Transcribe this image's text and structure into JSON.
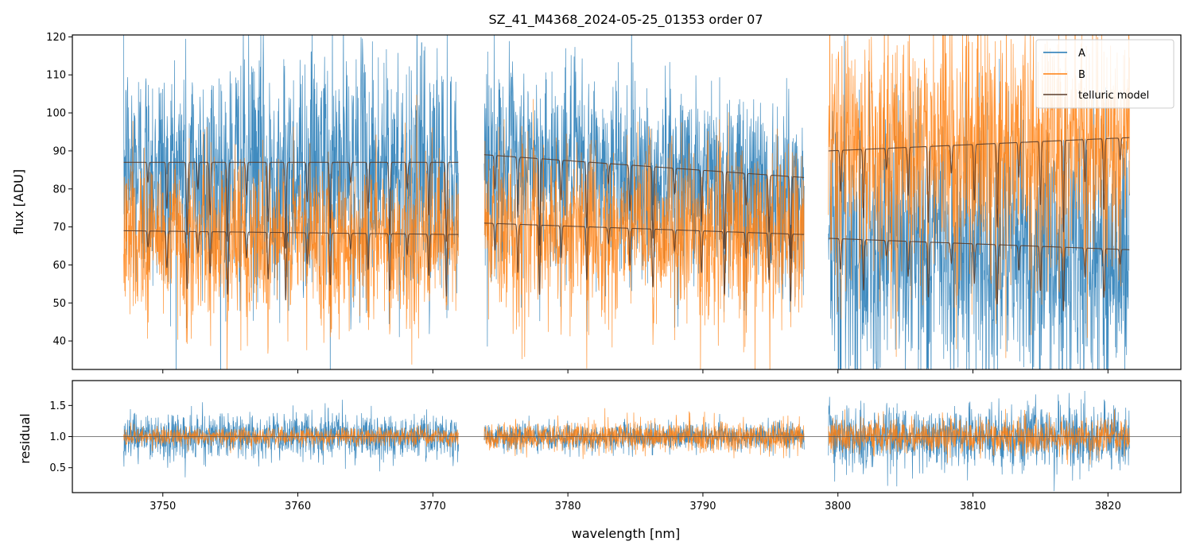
{
  "chart_data": [
    {
      "type": "line",
      "panel": "top",
      "title": "SZ_41_M4368_2024-05-25_01353  order 07",
      "xlabel": "",
      "ylabel": "flux [ADU]",
      "xlim": [
        3743.3,
        3825.4
      ],
      "ylim": [
        32.5,
        120.5
      ],
      "yticks": [
        40,
        50,
        60,
        70,
        80,
        90,
        100,
        110,
        120
      ],
      "xticks": [
        3750,
        3760,
        3770,
        3780,
        3790,
        3800,
        3810,
        3820
      ],
      "segments": [
        [
          3747.1,
          3771.9
        ],
        [
          3773.8,
          3797.5
        ],
        [
          3799.3,
          3821.6
        ]
      ],
      "legend": {
        "location": "top-right",
        "entries": [
          "A",
          "B",
          "telluric model"
        ]
      },
      "series": [
        {
          "name": "A",
          "color": "#1f77b4",
          "kind": "noisy-spectrum",
          "segment_levels": [
            {
              "range": [
                3747.1,
                3771.9
              ],
              "mean_start": 85,
              "mean_end": 85,
              "spread": 20
            },
            {
              "range": [
                3773.8,
                3797.5
              ],
              "mean_start": 88,
              "mean_end": 81,
              "spread": 16
            },
            {
              "range": [
                3799.3,
                3821.6
              ],
              "mean_start": 66,
              "mean_end": 62,
              "spread": 22
            }
          ]
        },
        {
          "name": "B",
          "color": "#ff7f0e",
          "kind": "noisy-spectrum",
          "segment_levels": [
            {
              "range": [
                3747.1,
                3771.9
              ],
              "mean_start": 68,
              "mean_end": 67,
              "spread": 13
            },
            {
              "range": [
                3773.8,
                3797.5
              ],
              "mean_start": 70,
              "mean_end": 68,
              "spread": 14
            },
            {
              "range": [
                3799.3,
                3821.6
              ],
              "mean_start": 90,
              "mean_end": 93,
              "spread": 20
            }
          ]
        },
        {
          "name": "telluric model (A)",
          "color": "#5a3d2b",
          "kind": "model",
          "segment_levels": [
            {
              "range": [
                3747.1,
                3771.9
              ],
              "mean_start": 87,
              "mean_end": 87
            },
            {
              "range": [
                3773.8,
                3797.5
              ],
              "mean_start": 89,
              "mean_end": 83
            },
            {
              "range": [
                3799.3,
                3821.6
              ],
              "mean_start": 67,
              "mean_end": 64
            }
          ]
        },
        {
          "name": "telluric model (B)",
          "color": "#5a3d2b",
          "kind": "model",
          "segment_levels": [
            {
              "range": [
                3747.1,
                3771.9
              ],
              "mean_start": 69,
              "mean_end": 68
            },
            {
              "range": [
                3773.8,
                3797.5
              ],
              "mean_start": 71,
              "mean_end": 68
            },
            {
              "range": [
                3799.3,
                3821.6
              ],
              "mean_start": 90,
              "mean_end": 93.5
            }
          ]
        }
      ],
      "absorption_lines": [
        3748.9,
        3750.3,
        3751.8,
        3752.6,
        3753.5,
        3754.8,
        3756.2,
        3757.8,
        3759.1,
        3760.7,
        3762.4,
        3763.9,
        3765.2,
        3766.8,
        3768.1,
        3769.7,
        3771.0,
        3774.6,
        3776.3,
        3777.9,
        3779.5,
        3781.4,
        3783.0,
        3784.6,
        3786.3,
        3787.9,
        3789.9,
        3791.6,
        3793.2,
        3794.9,
        3796.5,
        3800.2,
        3801.9,
        3803.6,
        3805.2,
        3806.7,
        3808.4,
        3810.1,
        3811.8,
        3813.4,
        3815.0,
        3816.7,
        3818.3,
        3819.7,
        3820.9
      ]
    },
    {
      "type": "line",
      "panel": "bottom",
      "title": "",
      "xlabel": "wavelength [nm]",
      "ylabel": "residual",
      "xlim": [
        3743.3,
        3825.4
      ],
      "ylim": [
        0.1,
        1.9
      ],
      "yticks": [
        0.5,
        1.0,
        1.5
      ],
      "ytick_labels": [
        "0.5",
        "1.0",
        "1.5"
      ],
      "xticks": [
        3750,
        3760,
        3770,
        3780,
        3790,
        3800,
        3810,
        3820
      ],
      "reference_line": 1.0,
      "series": [
        {
          "name": "A",
          "color": "#1f77b4",
          "segment_spread": [
            {
              "range": [
                3747.1,
                3771.9
              ],
              "spread": 0.33
            },
            {
              "range": [
                3773.8,
                3797.5
              ],
              "spread": 0.2
            },
            {
              "range": [
                3799.3,
                3821.6
              ],
              "spread": 0.45
            }
          ]
        },
        {
          "name": "B",
          "color": "#ff7f0e",
          "segment_spread": [
            {
              "range": [
                3747.1,
                3771.9
              ],
              "spread": 0.14
            },
            {
              "range": [
                3773.8,
                3797.5
              ],
              "spread": 0.22
            },
            {
              "range": [
                3799.3,
                3821.6
              ],
              "spread": 0.25
            }
          ]
        }
      ]
    }
  ]
}
